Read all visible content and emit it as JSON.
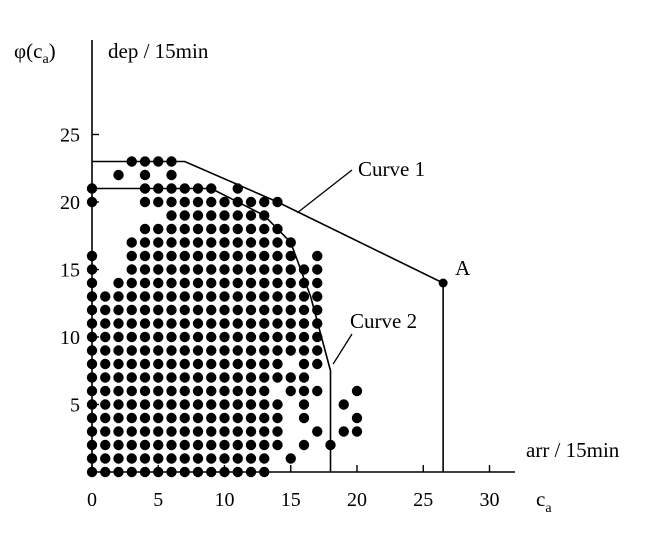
{
  "chart_data": {
    "type": "scatter",
    "title": "",
    "ylabel_symbol": "φ(c",
    "ylabel_sub": "a",
    "ylabel_close": ")",
    "ylabel_unit": "dep / 15min",
    "xlabel_unit": "arr / 15min",
    "xlabel_symbol": "c",
    "xlabel_sub": "a",
    "xlim": [
      0,
      32
    ],
    "ylim": [
      0,
      27
    ],
    "x_ticks": [
      0,
      5,
      10,
      15,
      20,
      25,
      30
    ],
    "y_ticks": [
      5,
      10,
      15,
      20,
      25
    ],
    "grid": false,
    "curves": [
      {
        "name": "Curve 1",
        "points": [
          [
            0,
            23
          ],
          [
            7,
            23
          ],
          [
            14,
            20
          ],
          [
            26.5,
            14
          ],
          [
            26.5,
            0
          ]
        ]
      },
      {
        "name": "Curve 2",
        "points": [
          [
            0,
            21
          ],
          [
            9,
            21
          ],
          [
            13,
            19
          ],
          [
            15,
            17
          ],
          [
            16.5,
            13
          ],
          [
            18,
            7.5
          ],
          [
            18,
            0
          ]
        ]
      }
    ],
    "point_label": {
      "text": "A",
      "x": 26.5,
      "y": 14
    },
    "scatter_points": [
      [
        3,
        23
      ],
      [
        4,
        23
      ],
      [
        5,
        23
      ],
      [
        6,
        23
      ],
      [
        2,
        22
      ],
      [
        4,
        22
      ],
      [
        6,
        22
      ],
      [
        0,
        21
      ],
      [
        4,
        21
      ],
      [
        5,
        21
      ],
      [
        6,
        21
      ],
      [
        7,
        21
      ],
      [
        8,
        21
      ],
      [
        9,
        21
      ],
      [
        11,
        21
      ],
      [
        8,
        20
      ],
      [
        9,
        20
      ],
      [
        10,
        20
      ],
      [
        11,
        20
      ],
      [
        12,
        20
      ],
      [
        13,
        20
      ],
      [
        0,
        20
      ],
      [
        4,
        20
      ],
      [
        5,
        20
      ],
      [
        6,
        20
      ],
      [
        7,
        20
      ],
      [
        14,
        20
      ],
      [
        6,
        19
      ],
      [
        7,
        19
      ],
      [
        8,
        19
      ],
      [
        9,
        19
      ],
      [
        10,
        19
      ],
      [
        11,
        19
      ],
      [
        12,
        19
      ],
      [
        13,
        19
      ],
      [
        4,
        18
      ],
      [
        5,
        18
      ],
      [
        6,
        18
      ],
      [
        7,
        18
      ],
      [
        8,
        18
      ],
      [
        9,
        18
      ],
      [
        10,
        18
      ],
      [
        11,
        18
      ],
      [
        12,
        18
      ],
      [
        13,
        18
      ],
      [
        14,
        18
      ],
      [
        3,
        17
      ],
      [
        4,
        17
      ],
      [
        5,
        17
      ],
      [
        6,
        17
      ],
      [
        7,
        17
      ],
      [
        8,
        17
      ],
      [
        9,
        17
      ],
      [
        10,
        17
      ],
      [
        11,
        17
      ],
      [
        12,
        17
      ],
      [
        13,
        17
      ],
      [
        14,
        17
      ],
      [
        15,
        17
      ],
      [
        0,
        16
      ],
      [
        3,
        16
      ],
      [
        4,
        16
      ],
      [
        5,
        16
      ],
      [
        6,
        16
      ],
      [
        7,
        16
      ],
      [
        8,
        16
      ],
      [
        9,
        16
      ],
      [
        10,
        16
      ],
      [
        11,
        16
      ],
      [
        12,
        16
      ],
      [
        13,
        16
      ],
      [
        14,
        16
      ],
      [
        15,
        16
      ],
      [
        17,
        16
      ],
      [
        0,
        15
      ],
      [
        3,
        15
      ],
      [
        4,
        15
      ],
      [
        5,
        15
      ],
      [
        6,
        15
      ],
      [
        7,
        15
      ],
      [
        8,
        15
      ],
      [
        9,
        15
      ],
      [
        10,
        15
      ],
      [
        11,
        15
      ],
      [
        12,
        15
      ],
      [
        13,
        15
      ],
      [
        14,
        15
      ],
      [
        15,
        15
      ],
      [
        16,
        15
      ],
      [
        17,
        15
      ],
      [
        0,
        14
      ],
      [
        2,
        14
      ],
      [
        3,
        14
      ],
      [
        4,
        14
      ],
      [
        5,
        14
      ],
      [
        6,
        14
      ],
      [
        7,
        14
      ],
      [
        8,
        14
      ],
      [
        9,
        14
      ],
      [
        10,
        14
      ],
      [
        11,
        14
      ],
      [
        12,
        14
      ],
      [
        13,
        14
      ],
      [
        14,
        14
      ],
      [
        15,
        14
      ],
      [
        16,
        14
      ],
      [
        17,
        14
      ],
      [
        0,
        13
      ],
      [
        1,
        13
      ],
      [
        2,
        13
      ],
      [
        3,
        13
      ],
      [
        4,
        13
      ],
      [
        5,
        13
      ],
      [
        6,
        13
      ],
      [
        7,
        13
      ],
      [
        8,
        13
      ],
      [
        9,
        13
      ],
      [
        10,
        13
      ],
      [
        11,
        13
      ],
      [
        12,
        13
      ],
      [
        13,
        13
      ],
      [
        14,
        13
      ],
      [
        15,
        13
      ],
      [
        16,
        13
      ],
      [
        17,
        13
      ],
      [
        0,
        12
      ],
      [
        1,
        12
      ],
      [
        2,
        12
      ],
      [
        3,
        12
      ],
      [
        4,
        12
      ],
      [
        5,
        12
      ],
      [
        6,
        12
      ],
      [
        7,
        12
      ],
      [
        8,
        12
      ],
      [
        9,
        12
      ],
      [
        10,
        12
      ],
      [
        11,
        12
      ],
      [
        12,
        12
      ],
      [
        13,
        12
      ],
      [
        14,
        12
      ],
      [
        15,
        12
      ],
      [
        16,
        12
      ],
      [
        17,
        12
      ],
      [
        0,
        11
      ],
      [
        1,
        11
      ],
      [
        2,
        11
      ],
      [
        3,
        11
      ],
      [
        4,
        11
      ],
      [
        5,
        11
      ],
      [
        6,
        11
      ],
      [
        7,
        11
      ],
      [
        8,
        11
      ],
      [
        9,
        11
      ],
      [
        10,
        11
      ],
      [
        11,
        11
      ],
      [
        12,
        11
      ],
      [
        13,
        11
      ],
      [
        14,
        11
      ],
      [
        15,
        11
      ],
      [
        16,
        11
      ],
      [
        17,
        11
      ],
      [
        0,
        10
      ],
      [
        1,
        10
      ],
      [
        2,
        10
      ],
      [
        3,
        10
      ],
      [
        4,
        10
      ],
      [
        5,
        10
      ],
      [
        6,
        10
      ],
      [
        7,
        10
      ],
      [
        8,
        10
      ],
      [
        9,
        10
      ],
      [
        10,
        10
      ],
      [
        11,
        10
      ],
      [
        12,
        10
      ],
      [
        13,
        10
      ],
      [
        14,
        10
      ],
      [
        15,
        10
      ],
      [
        16,
        10
      ],
      [
        17,
        10
      ],
      [
        0,
        9
      ],
      [
        1,
        9
      ],
      [
        2,
        9
      ],
      [
        3,
        9
      ],
      [
        4,
        9
      ],
      [
        5,
        9
      ],
      [
        6,
        9
      ],
      [
        7,
        9
      ],
      [
        8,
        9
      ],
      [
        9,
        9
      ],
      [
        10,
        9
      ],
      [
        11,
        9
      ],
      [
        12,
        9
      ],
      [
        13,
        9
      ],
      [
        14,
        9
      ],
      [
        15,
        9
      ],
      [
        16,
        9
      ],
      [
        17,
        9
      ],
      [
        0,
        8
      ],
      [
        1,
        8
      ],
      [
        2,
        8
      ],
      [
        3,
        8
      ],
      [
        4,
        8
      ],
      [
        5,
        8
      ],
      [
        6,
        8
      ],
      [
        7,
        8
      ],
      [
        8,
        8
      ],
      [
        9,
        8
      ],
      [
        10,
        8
      ],
      [
        11,
        8
      ],
      [
        12,
        8
      ],
      [
        13,
        8
      ],
      [
        14,
        8
      ],
      [
        16,
        8
      ],
      [
        17,
        8
      ],
      [
        0,
        7
      ],
      [
        1,
        7
      ],
      [
        2,
        7
      ],
      [
        3,
        7
      ],
      [
        4,
        7
      ],
      [
        5,
        7
      ],
      [
        6,
        7
      ],
      [
        7,
        7
      ],
      [
        8,
        7
      ],
      [
        9,
        7
      ],
      [
        10,
        7
      ],
      [
        11,
        7
      ],
      [
        12,
        7
      ],
      [
        13,
        7
      ],
      [
        14,
        7
      ],
      [
        15,
        7
      ],
      [
        16,
        7
      ],
      [
        0,
        6
      ],
      [
        1,
        6
      ],
      [
        2,
        6
      ],
      [
        3,
        6
      ],
      [
        4,
        6
      ],
      [
        5,
        6
      ],
      [
        6,
        6
      ],
      [
        7,
        6
      ],
      [
        8,
        6
      ],
      [
        9,
        6
      ],
      [
        10,
        6
      ],
      [
        11,
        6
      ],
      [
        12,
        6
      ],
      [
        13,
        6
      ],
      [
        15,
        6
      ],
      [
        16,
        6
      ],
      [
        17,
        6
      ],
      [
        20,
        6
      ],
      [
        0,
        5
      ],
      [
        1,
        5
      ],
      [
        2,
        5
      ],
      [
        3,
        5
      ],
      [
        4,
        5
      ],
      [
        5,
        5
      ],
      [
        6,
        5
      ],
      [
        7,
        5
      ],
      [
        8,
        5
      ],
      [
        9,
        5
      ],
      [
        10,
        5
      ],
      [
        11,
        5
      ],
      [
        12,
        5
      ],
      [
        13,
        5
      ],
      [
        14,
        5
      ],
      [
        16,
        5
      ],
      [
        19,
        5
      ],
      [
        0,
        4
      ],
      [
        1,
        4
      ],
      [
        2,
        4
      ],
      [
        3,
        4
      ],
      [
        4,
        4
      ],
      [
        5,
        4
      ],
      [
        6,
        4
      ],
      [
        7,
        4
      ],
      [
        8,
        4
      ],
      [
        9,
        4
      ],
      [
        10,
        4
      ],
      [
        11,
        4
      ],
      [
        12,
        4
      ],
      [
        13,
        4
      ],
      [
        14,
        4
      ],
      [
        16,
        4
      ],
      [
        20,
        4
      ],
      [
        0,
        3
      ],
      [
        1,
        3
      ],
      [
        2,
        3
      ],
      [
        3,
        3
      ],
      [
        4,
        3
      ],
      [
        5,
        3
      ],
      [
        6,
        3
      ],
      [
        7,
        3
      ],
      [
        8,
        3
      ],
      [
        9,
        3
      ],
      [
        10,
        3
      ],
      [
        11,
        3
      ],
      [
        12,
        3
      ],
      [
        13,
        3
      ],
      [
        14,
        3
      ],
      [
        17,
        3
      ],
      [
        19,
        3
      ],
      [
        20,
        3
      ],
      [
        0,
        2
      ],
      [
        1,
        2
      ],
      [
        2,
        2
      ],
      [
        3,
        2
      ],
      [
        4,
        2
      ],
      [
        5,
        2
      ],
      [
        6,
        2
      ],
      [
        7,
        2
      ],
      [
        8,
        2
      ],
      [
        9,
        2
      ],
      [
        10,
        2
      ],
      [
        11,
        2
      ],
      [
        12,
        2
      ],
      [
        13,
        2
      ],
      [
        14,
        2
      ],
      [
        16,
        2
      ],
      [
        18,
        2
      ],
      [
        0,
        1
      ],
      [
        1,
        1
      ],
      [
        2,
        1
      ],
      [
        3,
        1
      ],
      [
        4,
        1
      ],
      [
        5,
        1
      ],
      [
        6,
        1
      ],
      [
        7,
        1
      ],
      [
        8,
        1
      ],
      [
        9,
        1
      ],
      [
        10,
        1
      ],
      [
        11,
        1
      ],
      [
        12,
        1
      ],
      [
        13,
        1
      ],
      [
        15,
        1
      ],
      [
        0,
        0
      ],
      [
        1,
        0
      ],
      [
        2,
        0
      ],
      [
        3,
        0
      ],
      [
        4,
        0
      ],
      [
        5,
        0
      ],
      [
        6,
        0
      ],
      [
        7,
        0
      ],
      [
        8,
        0
      ],
      [
        9,
        0
      ],
      [
        10,
        0
      ],
      [
        11,
        0
      ],
      [
        12,
        0
      ],
      [
        13,
        0
      ]
    ]
  }
}
